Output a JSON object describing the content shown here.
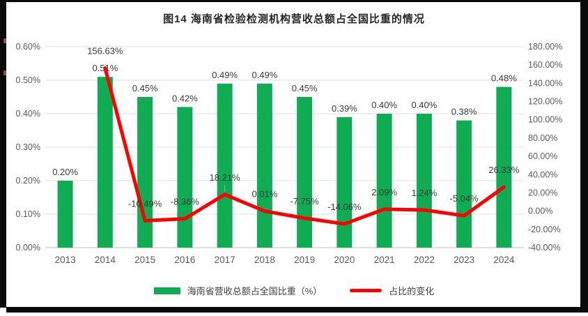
{
  "frame": {
    "title": "图14 海南省检验检测机构营收总额占全国比重的情况"
  },
  "colors": {
    "bar": "#10AC54",
    "line": "#FE0000",
    "grid": "#DCDCDC",
    "axis_line": "#BFBFBF",
    "axis_text": "#595959",
    "label_text": "#3a3a3a",
    "leader": "#A6A6A6"
  },
  "legend": {
    "bar_label": "海南省营收总额占全国比重（%）",
    "line_label": "占比的变化"
  },
  "chart_data": {
    "type": "bar",
    "subtype": "bar-line-combo",
    "title": "图14 海南省检验检测机构营收总额占全国比重的情况",
    "categories": [
      "2013",
      "2014",
      "2015",
      "2016",
      "2017",
      "2018",
      "2019",
      "2020",
      "2021",
      "2022",
      "2023",
      "2024"
    ],
    "series": [
      {
        "name": "海南省营收总额占全国比重（%）",
        "type": "bar",
        "axis": "left",
        "values": [
          0.2,
          0.51,
          0.45,
          0.42,
          0.49,
          0.49,
          0.45,
          0.39,
          0.4,
          0.4,
          0.38,
          0.48
        ],
        "labels": [
          "0.20%",
          "0.51%",
          "0.45%",
          "0.42%",
          "0.49%",
          "0.49%",
          "0.45%",
          "0.39%",
          "0.40%",
          "0.40%",
          "0.38%",
          "0.48%"
        ]
      },
      {
        "name": "占比的变化",
        "type": "line",
        "axis": "right",
        "values": [
          null,
          156.63,
          -10.49,
          -8.36,
          18.21,
          0.01,
          -7.75,
          -14.06,
          2.09,
          1.24,
          -5.04,
          26.33
        ],
        "labels": [
          null,
          "156.63%",
          "-10.49%",
          "-8.36%",
          "18.21%",
          "0.01%",
          "-7.75%",
          "-14.06%",
          "2.09%",
          "1.24%",
          "-5.04%",
          "26.33%"
        ]
      }
    ],
    "left_axis": {
      "min": 0,
      "max": 0.6,
      "step": 0.1,
      "ticks": [
        "0.00%",
        "0.10%",
        "0.20%",
        "0.30%",
        "0.40%",
        "0.50%",
        "0.60%"
      ]
    },
    "right_axis": {
      "min": -40,
      "max": 180,
      "step": 20,
      "ticks": [
        "-40.00%",
        "-20.00%",
        "0.00%",
        "20.00%",
        "40.00%",
        "60.00%",
        "80.00%",
        "100.00%",
        "120.00%",
        "140.00%",
        "160.00%",
        "180.00%"
      ]
    },
    "grid": true,
    "legend_position": "bottom",
    "label_leader_index": 4
  }
}
